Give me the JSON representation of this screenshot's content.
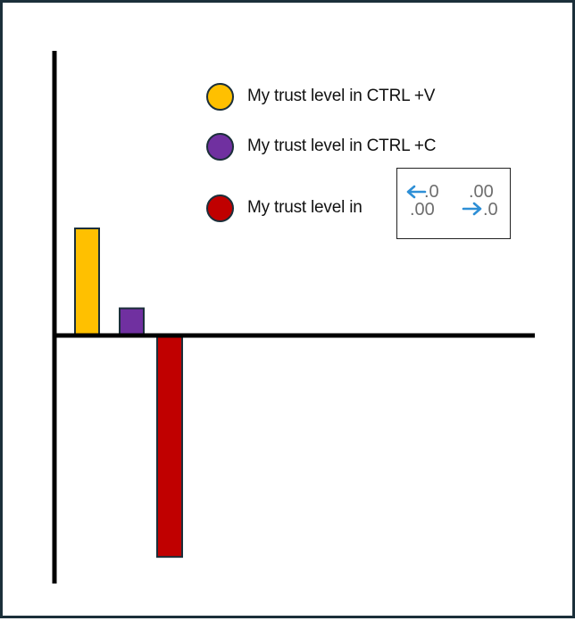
{
  "chart_data": {
    "type": "bar",
    "categories": [
      "",
      "",
      ""
    ],
    "values": [
      0.48,
      0.12,
      -1.0
    ],
    "ylim": [
      -1.12,
      1.28
    ],
    "grid": false,
    "legend_placement": "top-right",
    "series": [
      {
        "name": "My trust level in CTRL +V",
        "value": 0.48,
        "color": "#ffc000"
      },
      {
        "name": "My trust level in CTRL +C",
        "value": 0.12,
        "color": "#7030a0"
      },
      {
        "name": "My trust level in",
        "value": -1.0,
        "color": "#c00000"
      }
    ]
  },
  "legend": {
    "items": [
      {
        "label": "My trust level in CTRL +V",
        "color": "#ffc000"
      },
      {
        "label": "My trust level in CTRL +C",
        "color": "#7030a0"
      },
      {
        "label": "My trust level in",
        "color": "#c00000"
      }
    ]
  },
  "decimal_icon": {
    "icon": "decrease-increase-decimal-icon",
    "decrease_top": ".0",
    "decrease_bottom": ".00",
    "increase_top": ".00",
    "increase_bottom": ".0",
    "arrow_color": "#2e8fd6"
  },
  "colors": {
    "border": "#1b2f3a",
    "axis": "#000000"
  }
}
